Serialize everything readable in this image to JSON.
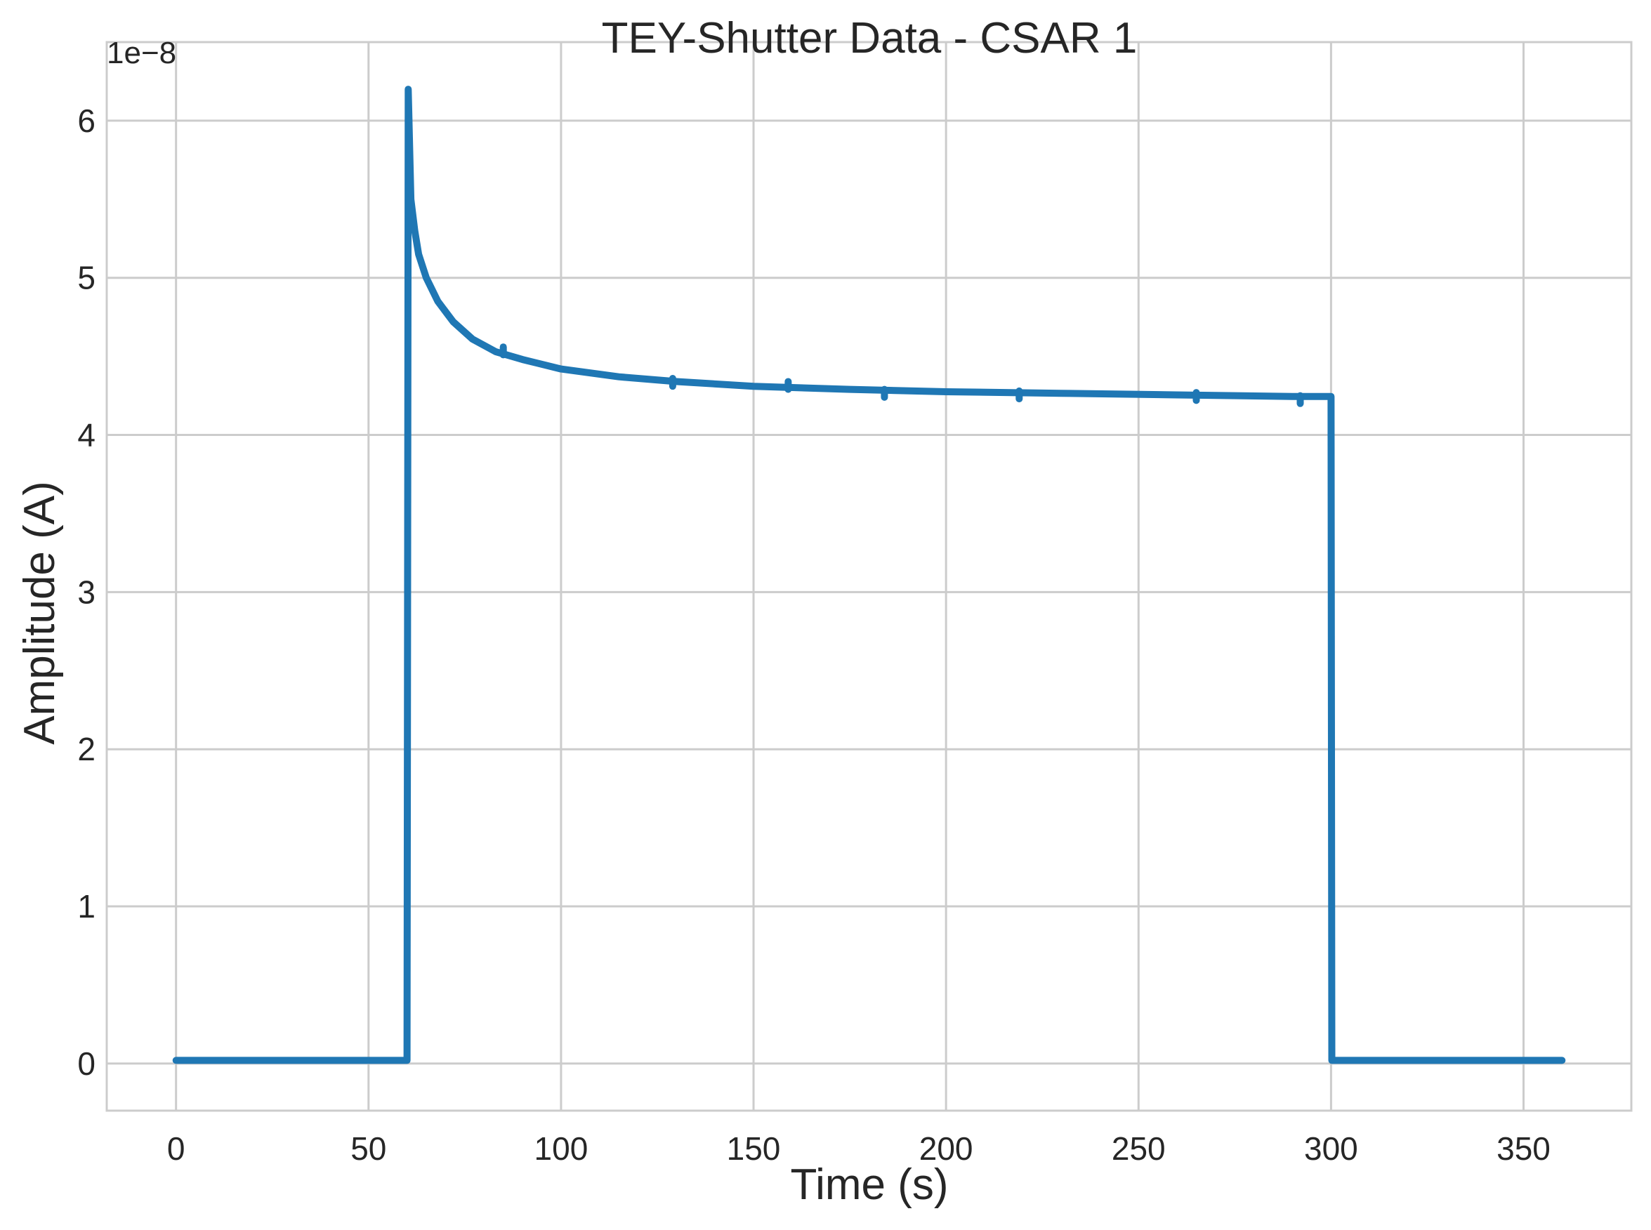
{
  "chart_data": {
    "type": "line",
    "title": "TEY-Shutter Data - CSAR 1",
    "xlabel": "Time (s)",
    "ylabel": "Amplitude (A)",
    "y_offset_label": "1e−8",
    "xlim": [
      -18,
      378
    ],
    "ylim": [
      -0.3,
      6.5
    ],
    "x_ticks": [
      0,
      50,
      100,
      150,
      200,
      250,
      300,
      350
    ],
    "x_tick_labels": [
      "0",
      "50",
      "100",
      "150",
      "200",
      "250",
      "300",
      "350"
    ],
    "y_ticks": [
      0,
      1,
      2,
      3,
      4,
      5,
      6
    ],
    "y_tick_labels": [
      "0",
      "1",
      "2",
      "3",
      "4",
      "5",
      "6"
    ],
    "grid": true,
    "legend": "none",
    "series": [
      {
        "color": "#1f77b4",
        "x": [
          0,
          30,
          59.8,
          60,
          60.3,
          61,
          62,
          63,
          65,
          68,
          72,
          77,
          83,
          90,
          100,
          115,
          130,
          150,
          175,
          200,
          230,
          260,
          290,
          300,
          300.2,
          330,
          360
        ],
        "y": [
          0.02,
          0.02,
          0.02,
          0.02,
          6.2,
          5.5,
          5.3,
          5.15,
          5.0,
          4.85,
          4.72,
          4.61,
          4.53,
          4.48,
          4.42,
          4.37,
          4.34,
          4.31,
          4.29,
          4.275,
          4.265,
          4.255,
          4.245,
          4.245,
          0.02,
          0.02,
          0.02
        ]
      }
    ],
    "dips": {
      "color": "#1f77b4",
      "x": [
        85,
        129,
        159,
        184,
        219,
        265,
        292
      ],
      "y": [
        4.51,
        4.31,
        4.29,
        4.24,
        4.23,
        4.22,
        4.2
      ]
    }
  }
}
